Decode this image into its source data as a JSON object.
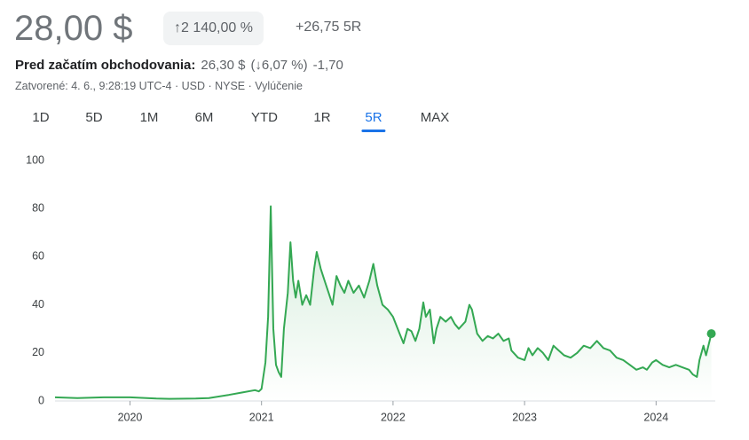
{
  "header": {
    "price": "28,00 $",
    "percent_change": "↑2 140,00 %",
    "change": "+26,75 5R"
  },
  "premarket": {
    "label": "Pred začatím obchodovania:",
    "price": "26,30 $",
    "percent": "(↓6,07 %)",
    "change": "-1,70"
  },
  "meta": "Zatvorené: 4. 6., 9:28:19 UTC-4 · USD · NYSE · Vylúčenie",
  "tabs": {
    "items": [
      "1D",
      "5D",
      "1M",
      "6M",
      "YTD",
      "1R",
      "5R",
      "MAX"
    ],
    "active": 6
  },
  "chart_data": {
    "type": "line",
    "color": "#34a853",
    "x": [
      2019.43,
      2019.6,
      2019.8,
      2020.0,
      2020.2,
      2020.3,
      2020.5,
      2020.6,
      2020.75,
      2020.85,
      2020.95,
      2020.98,
      2021.0,
      2021.03,
      2021.05,
      2021.07,
      2021.09,
      2021.11,
      2021.13,
      2021.15,
      2021.17,
      2021.2,
      2021.22,
      2021.24,
      2021.26,
      2021.28,
      2021.31,
      2021.34,
      2021.37,
      2021.4,
      2021.42,
      2021.45,
      2021.48,
      2021.51,
      2021.54,
      2021.57,
      2021.6,
      2021.63,
      2021.66,
      2021.7,
      2021.74,
      2021.78,
      2021.82,
      2021.85,
      2021.88,
      2021.92,
      2021.96,
      2022.0,
      2022.05,
      2022.08,
      2022.11,
      2022.14,
      2022.17,
      2022.2,
      2022.23,
      2022.25,
      2022.28,
      2022.31,
      2022.33,
      2022.36,
      2022.4,
      2022.44,
      2022.47,
      2022.5,
      2022.55,
      2022.58,
      2022.6,
      2022.64,
      2022.68,
      2022.72,
      2022.76,
      2022.8,
      2022.84,
      2022.88,
      2022.9,
      2022.95,
      2023.0,
      2023.03,
      2023.06,
      2023.1,
      2023.14,
      2023.18,
      2023.22,
      2023.26,
      2023.3,
      2023.35,
      2023.4,
      2023.45,
      2023.5,
      2023.55,
      2023.6,
      2023.65,
      2023.7,
      2023.75,
      2023.8,
      2023.85,
      2023.9,
      2023.93,
      2023.97,
      2024.0,
      2024.05,
      2024.1,
      2024.15,
      2024.2,
      2024.25,
      2024.28,
      2024.31,
      2024.33,
      2024.36,
      2024.38,
      2024.42
    ],
    "values": [
      1.5,
      1.2,
      1.5,
      1.5,
      1.0,
      0.9,
      1.0,
      1.2,
      2.5,
      3.5,
      4.5,
      4,
      5,
      16,
      35,
      81,
      30,
      15,
      12,
      10,
      30,
      45,
      66,
      50,
      43,
      50,
      40,
      44,
      40,
      55,
      62,
      55,
      50,
      45,
      40,
      52,
      48,
      45,
      50,
      45,
      48,
      43,
      50,
      57,
      48,
      40,
      38,
      35,
      28,
      24,
      30,
      29,
      25,
      30,
      41,
      35,
      38,
      24,
      30,
      35,
      33,
      35,
      32,
      30,
      33,
      40,
      38,
      28,
      25,
      27,
      26,
      28,
      25,
      26,
      21,
      18,
      17,
      22,
      19,
      22,
      20,
      17,
      23,
      21,
      19,
      18,
      20,
      23,
      22,
      25,
      22,
      21,
      18,
      17,
      15,
      13,
      14,
      13,
      16,
      17,
      15,
      14,
      15,
      14,
      13,
      11,
      10,
      17,
      23,
      19,
      28
    ],
    "xlim": [
      2019.43,
      2024.45
    ],
    "xticks": [
      2020,
      2021,
      2022,
      2023,
      2024
    ],
    "ylim": [
      0,
      100
    ],
    "yticks": [
      0,
      20,
      40,
      60,
      80,
      100
    ],
    "grid": false
  }
}
